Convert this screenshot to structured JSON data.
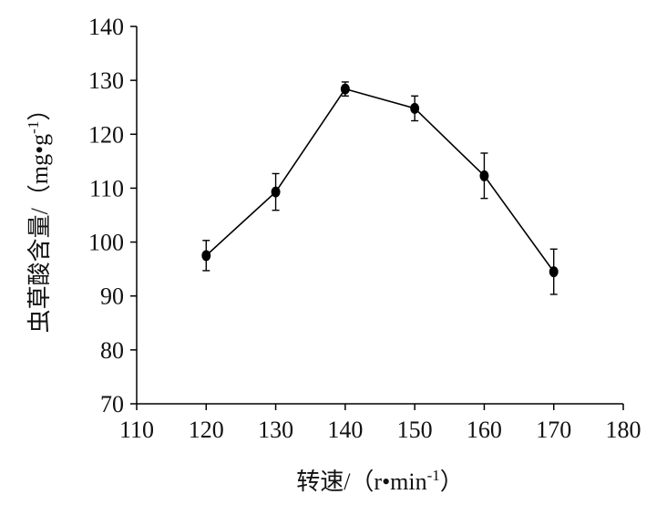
{
  "chart_data": {
    "type": "line",
    "title": "",
    "xlabel": "转速/（r•min-1）",
    "xlabel_parts": {
      "text": "转速/（r•min",
      "sup": "-1",
      "close": "）"
    },
    "ylabel": "虫草酸含量/（mg•g-1）",
    "ylabel_parts": {
      "text": "虫草酸含量/（mg•g",
      "sup": "-1",
      "close": "）"
    },
    "xlim": [
      110,
      180
    ],
    "ylim": [
      70,
      140
    ],
    "xticks": [
      110,
      120,
      130,
      140,
      150,
      160,
      170,
      180
    ],
    "yticks": [
      70,
      80,
      90,
      100,
      110,
      120,
      130,
      140
    ],
    "grid": false,
    "legend": "none",
    "series": [
      {
        "x": [
          120,
          130,
          140,
          150,
          160,
          170
        ],
        "y": [
          97.5,
          109.3,
          128.4,
          124.8,
          112.3,
          94.5
        ],
        "error": [
          2.8,
          3.4,
          1.3,
          2.3,
          4.2,
          4.2
        ],
        "color": "#000000",
        "marker": "circle"
      }
    ]
  }
}
